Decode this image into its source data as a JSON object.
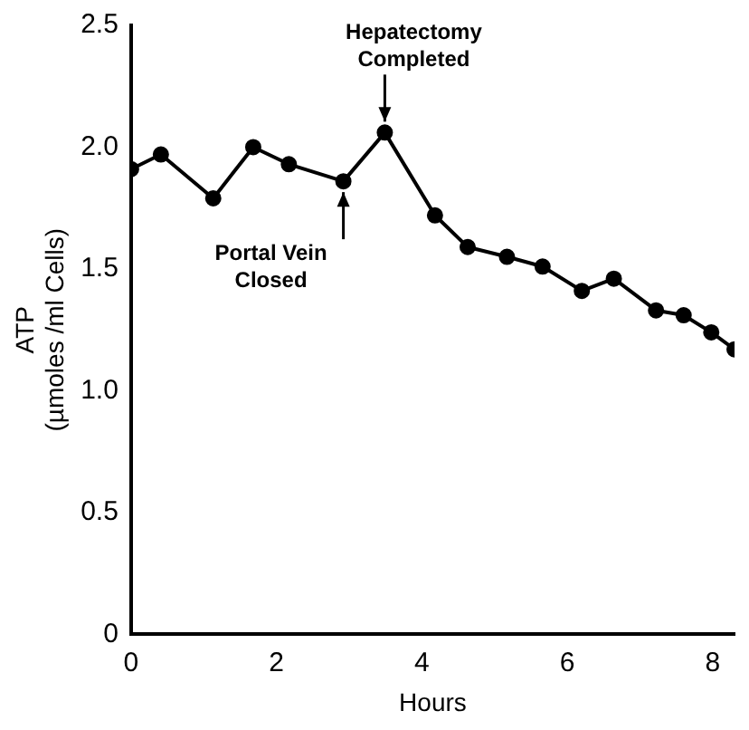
{
  "chart_data": {
    "type": "line",
    "xlabel": "Hours",
    "ylabel": "ATP\n(µmoles /ml Cells)",
    "x": [
      0,
      0.41,
      1.13,
      1.68,
      2.17,
      2.92,
      3.49,
      4.18,
      4.63,
      5.17,
      5.66,
      6.2,
      6.64,
      7.22,
      7.6,
      7.98,
      8.3
    ],
    "series": [
      {
        "color": "#000000",
        "values": [
          1.91,
          1.97,
          1.79,
          2.0,
          1.93,
          1.86,
          2.06,
          1.72,
          1.59,
          1.55,
          1.51,
          1.41,
          1.46,
          1.33,
          1.31,
          1.24,
          1.17
        ]
      }
    ],
    "xlim": [
      0,
      8.3
    ],
    "xticks": [
      0,
      2,
      4,
      6,
      8
    ],
    "ylim": [
      0,
      2.5
    ],
    "yticks": [
      0,
      0.5,
      {
        "value": 1,
        "label": "1.0"
      },
      {
        "value": 1.5,
        "label": "1.5"
      },
      {
        "value": 2,
        "label": "2.0"
      },
      2.5
    ],
    "annotations": [
      {
        "text": "Hepatectomy\nCompleted",
        "x": 3.49,
        "y": 2.06
      },
      {
        "text": "Portal Vein\nClosed",
        "x": 2.92,
        "y": 1.86
      }
    ],
    "grid": false,
    "legend": false,
    "marker": "circle",
    "line_style": "solid"
  }
}
